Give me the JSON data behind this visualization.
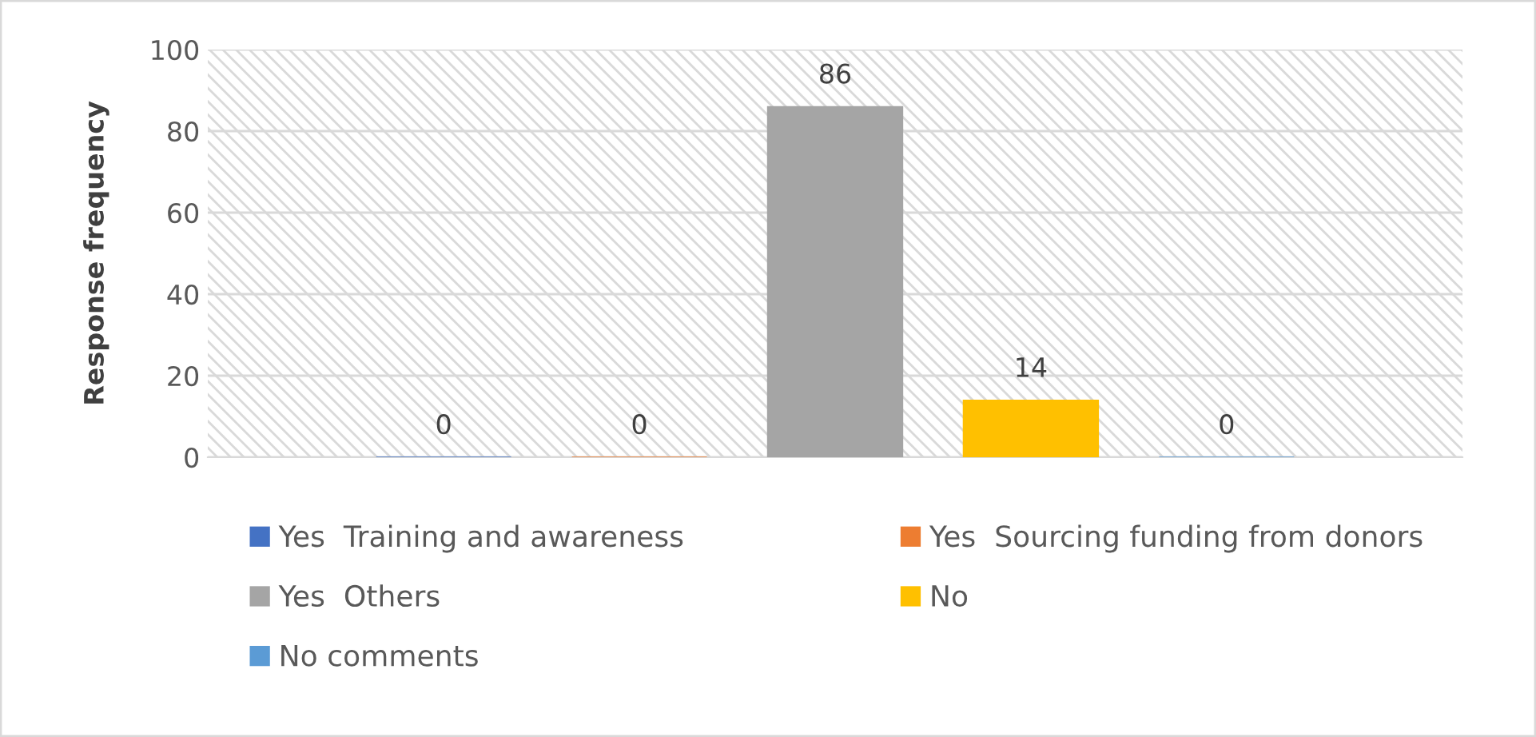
{
  "chart_data": {
    "type": "bar",
    "ylabel": "Response frequency",
    "categories": [
      null
    ],
    "series": [
      {
        "name": "Yes  Training and awareness",
        "color": "#4472c4",
        "values": [
          0
        ]
      },
      {
        "name": "Yes  Sourcing funding from donors",
        "color": "#ed7d31",
        "values": [
          0
        ]
      },
      {
        "name": "Yes  Others",
        "color": "#a5a5a5",
        "values": [
          86
        ]
      },
      {
        "name": "No",
        "color": "#ffc000",
        "values": [
          14
        ]
      },
      {
        "name": "No comments",
        "color": "#5b9bd5",
        "values": [
          0
        ]
      }
    ],
    "ylim": [
      0,
      100
    ],
    "yticks": [
      0,
      20,
      40,
      60,
      80,
      100
    ],
    "grid": "y",
    "legend": "bottom",
    "data_labels": true
  }
}
